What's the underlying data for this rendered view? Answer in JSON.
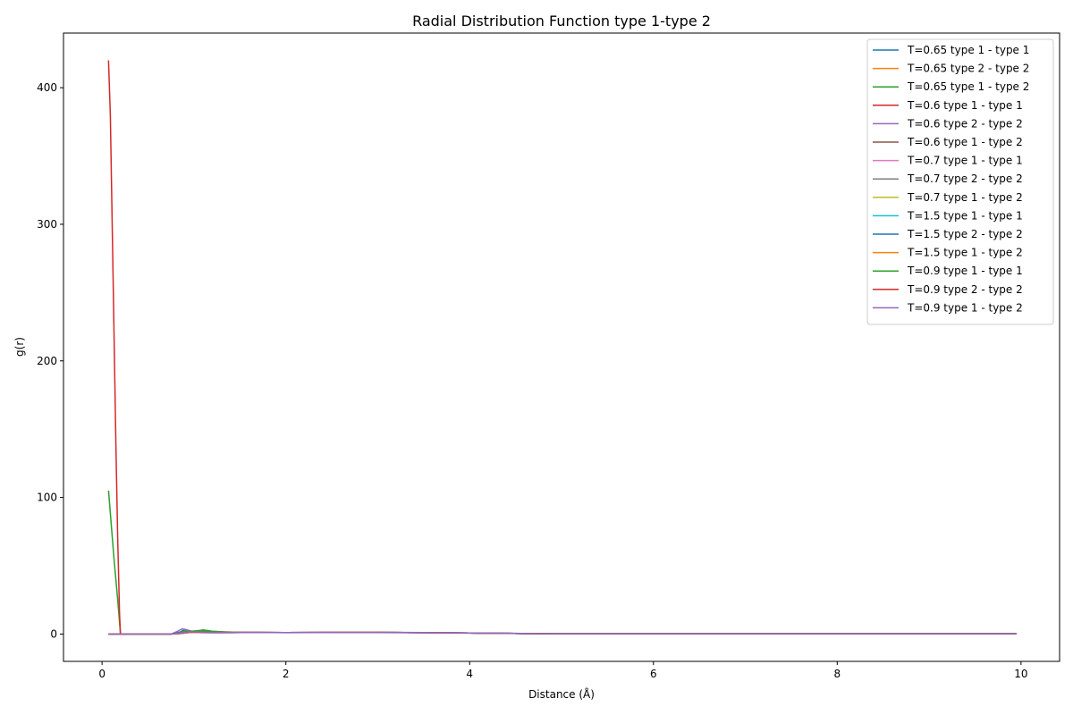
{
  "chart_data": {
    "type": "line",
    "title": "Radial Distribution Function type 1-type 2",
    "xlabel": "Distance (Å)",
    "ylabel": "g(r)",
    "xlim": [
      -0.42,
      10.42
    ],
    "ylim": [
      -20,
      440
    ],
    "xticks": [
      0,
      2,
      4,
      6,
      8,
      10
    ],
    "yticks": [
      0,
      100,
      200,
      300,
      400
    ],
    "grid": false,
    "legend_position": "top-right",
    "series": [
      {
        "name": "T=0.65 type 1 - type 1",
        "color": "#1f77b4",
        "x": [
          0.07,
          0.12,
          0.2,
          0.5,
          0.75,
          0.85,
          0.9,
          0.95,
          1.0,
          1.1,
          1.2,
          1.4,
          1.7,
          2.0,
          2.5,
          3.0,
          3.5,
          3.7,
          4.0,
          4.5,
          4.7,
          5.0,
          6.0,
          7.0,
          8.0,
          9.0,
          9.95
        ],
        "y": [
          0,
          0,
          0,
          0,
          0,
          1.5,
          3.5,
          2.5,
          1.5,
          3.0,
          2.0,
          1.2,
          1.3,
          1.0,
          1.2,
          1.3,
          1.1,
          0.8,
          0.8,
          0.5,
          0.2,
          0.2,
          0.2,
          0.2,
          0.2,
          0.2,
          0.2
        ]
      },
      {
        "name": "T=0.65 type 2 - type 2",
        "color": "#ff7f0e",
        "x": [
          0.07,
          0.2,
          0.5,
          0.75,
          0.85,
          0.95,
          1.05,
          1.2,
          1.5,
          2.0,
          2.5,
          3.0,
          3.6,
          4.0,
          4.6,
          5.0,
          6.0,
          7.0,
          8.0,
          9.0,
          9.95
        ],
        "y": [
          0,
          0,
          0,
          0,
          0.5,
          1.5,
          1.2,
          1.0,
          1.2,
          1.1,
          1.2,
          1.2,
          1.0,
          0.8,
          0.4,
          0.2,
          0.2,
          0.2,
          0.2,
          0.2,
          0.2
        ]
      },
      {
        "name": "T=0.65 type 1 - type 2",
        "color": "#2ca02c",
        "x": [
          0.07,
          0.1,
          0.13,
          0.17,
          0.2,
          0.5,
          0.75,
          0.85,
          0.9,
          1.0,
          1.1,
          1.2,
          1.5,
          2.0,
          2.5,
          3.0,
          3.5,
          3.7,
          4.0,
          4.6,
          5.0,
          6.0,
          7.0,
          8.0,
          9.0,
          9.95
        ],
        "y": [
          105,
          80,
          55,
          25,
          0,
          0,
          0,
          1,
          2.5,
          2.0,
          3.0,
          2.0,
          1.2,
          1.1,
          1.2,
          1.2,
          1.0,
          0.8,
          0.7,
          0.4,
          0.2,
          0.2,
          0.2,
          0.2,
          0.2,
          0.2
        ]
      },
      {
        "name": "T=0.6 type 1 - type 1",
        "color": "#d62728",
        "x": [
          0.07,
          0.09,
          0.11,
          0.13,
          0.15,
          0.17,
          0.19,
          0.2,
          0.5,
          0.75,
          0.85,
          0.95,
          1.05,
          1.2,
          1.5,
          2.0,
          2.5,
          3.0,
          3.6,
          4.0,
          4.6,
          5.0,
          6.0,
          7.0,
          8.0,
          9.0,
          9.95
        ],
        "y": [
          420,
          380,
          300,
          220,
          140,
          70,
          15,
          0,
          0,
          0,
          0.5,
          1.8,
          1.6,
          1.2,
          1.3,
          1.1,
          1.2,
          1.2,
          1.0,
          0.8,
          0.4,
          0.2,
          0.2,
          0.2,
          0.2,
          0.2,
          0.2
        ]
      },
      {
        "name": "T=0.6 type 2 - type 2",
        "color": "#9467bd",
        "x": [
          0.07,
          0.2,
          0.5,
          0.75,
          0.82,
          0.87,
          0.92,
          0.97,
          1.05,
          1.2,
          1.5,
          2.0,
          2.5,
          3.0,
          3.6,
          4.0,
          4.6,
          5.0,
          6.0,
          7.0,
          8.0,
          9.0,
          9.95
        ],
        "y": [
          0,
          0,
          0,
          0,
          2.0,
          3.8,
          3.0,
          2.0,
          1.5,
          1.1,
          1.2,
          1.1,
          1.2,
          1.2,
          1.0,
          0.8,
          0.4,
          0.2,
          0.2,
          0.2,
          0.2,
          0.2,
          0.2
        ]
      },
      {
        "name": "T=0.6 type 1 - type 2",
        "color": "#8c564b",
        "x": [
          0.07,
          0.2,
          0.5,
          0.75,
          0.85,
          0.95,
          1.05,
          1.2,
          1.5,
          2.0,
          2.5,
          3.0,
          3.6,
          4.0,
          4.6,
          5.0,
          6.0,
          7.0,
          8.0,
          9.0,
          9.95
        ],
        "y": [
          0,
          0,
          0,
          0,
          0.8,
          1.6,
          1.4,
          1.1,
          1.2,
          1.1,
          1.2,
          1.2,
          1.0,
          0.8,
          0.4,
          0.2,
          0.2,
          0.2,
          0.2,
          0.2,
          0.2
        ]
      },
      {
        "name": "T=0.7 type 1 - type 1",
        "color": "#e377c2",
        "x": [
          0.07,
          0.2,
          0.5,
          0.75,
          0.85,
          0.95,
          1.05,
          1.2,
          1.5,
          2.0,
          2.5,
          3.0,
          3.6,
          4.0,
          4.6,
          5.0,
          6.0,
          7.0,
          8.0,
          9.0,
          9.95
        ],
        "y": [
          0,
          0,
          0,
          0,
          0.6,
          1.4,
          1.3,
          1.1,
          1.2,
          1.1,
          1.2,
          1.2,
          1.0,
          0.8,
          0.4,
          0.2,
          0.2,
          0.2,
          0.2,
          0.2,
          0.2
        ]
      },
      {
        "name": "T=0.7 type 2 - type 2",
        "color": "#7f7f7f",
        "x": [
          0.07,
          0.2,
          0.5,
          0.75,
          0.85,
          0.95,
          1.05,
          1.2,
          1.5,
          2.0,
          2.5,
          3.0,
          3.6,
          4.0,
          4.6,
          5.0,
          6.0,
          7.0,
          8.0,
          9.0,
          9.95
        ],
        "y": [
          0,
          0,
          0,
          0,
          0.7,
          1.5,
          1.3,
          1.1,
          1.2,
          1.1,
          1.2,
          1.2,
          1.0,
          0.8,
          0.4,
          0.2,
          0.2,
          0.2,
          0.2,
          0.2,
          0.2
        ]
      },
      {
        "name": "T=0.7 type 1 - type 2",
        "color": "#bcbd22",
        "x": [
          0.07,
          0.2,
          0.5,
          0.75,
          0.85,
          0.95,
          1.05,
          1.2,
          1.5,
          2.0,
          2.5,
          3.0,
          3.6,
          4.0,
          4.6,
          5.0,
          6.0,
          7.0,
          8.0,
          9.0,
          9.95
        ],
        "y": [
          0,
          0,
          0,
          0,
          0.6,
          1.4,
          1.3,
          1.1,
          1.2,
          1.1,
          1.2,
          1.2,
          1.0,
          0.8,
          0.4,
          0.2,
          0.2,
          0.2,
          0.2,
          0.2,
          0.2
        ]
      },
      {
        "name": "T=1.5 type 1 - type 1",
        "color": "#17becf",
        "x": [
          0.07,
          0.2,
          0.5,
          0.75,
          0.85,
          0.95,
          1.05,
          1.2,
          1.5,
          2.0,
          2.5,
          3.0,
          3.6,
          4.0,
          4.6,
          5.0,
          6.0,
          7.0,
          8.0,
          9.0,
          9.95
        ],
        "y": [
          0,
          0,
          0,
          0,
          0.4,
          1.1,
          1.1,
          1.0,
          1.1,
          1.1,
          1.1,
          1.1,
          1.0,
          0.8,
          0.4,
          0.2,
          0.2,
          0.2,
          0.2,
          0.2,
          0.2
        ]
      },
      {
        "name": "T=1.5 type 2 - type 2",
        "color": "#1f77b4",
        "x": [
          0.07,
          0.2,
          0.5,
          0.75,
          0.85,
          0.95,
          1.05,
          1.2,
          1.5,
          2.0,
          2.5,
          3.0,
          3.6,
          4.0,
          4.6,
          5.0,
          6.0,
          7.0,
          8.0,
          9.0,
          9.95
        ],
        "y": [
          0,
          0,
          0,
          0,
          0.4,
          1.1,
          1.1,
          1.0,
          1.1,
          1.1,
          1.1,
          1.1,
          1.0,
          0.8,
          0.4,
          0.2,
          0.2,
          0.2,
          0.2,
          0.2,
          0.2
        ]
      },
      {
        "name": "T=1.5 type 1 - type 2",
        "color": "#ff7f0e",
        "x": [
          0.07,
          0.2,
          0.5,
          0.75,
          0.85,
          0.95,
          1.05,
          1.2,
          1.5,
          2.0,
          2.5,
          3.0,
          3.6,
          4.0,
          4.6,
          5.0,
          6.0,
          7.0,
          8.0,
          9.0,
          9.95
        ],
        "y": [
          0,
          0,
          0,
          0,
          0.4,
          1.1,
          1.1,
          1.0,
          1.1,
          1.1,
          1.1,
          1.1,
          1.0,
          0.8,
          0.4,
          0.2,
          0.2,
          0.2,
          0.2,
          0.2,
          0.2
        ]
      },
      {
        "name": "T=0.9 type 1 - type 1",
        "color": "#2ca02c",
        "x": [
          0.07,
          0.2,
          0.5,
          0.75,
          0.85,
          0.95,
          1.05,
          1.15,
          1.25,
          1.5,
          2.0,
          2.5,
          3.0,
          3.6,
          4.0,
          4.6,
          5.0,
          6.0,
          7.0,
          8.0,
          9.0,
          9.95
        ],
        "y": [
          0,
          0,
          0,
          0,
          0.8,
          2.0,
          2.5,
          2.2,
          1.2,
          1.2,
          1.1,
          1.2,
          1.2,
          1.0,
          0.8,
          0.4,
          0.2,
          0.2,
          0.2,
          0.2,
          0.2,
          0.2
        ]
      },
      {
        "name": "T=0.9 type 2 - type 2",
        "color": "#d62728",
        "x": [
          0.07,
          0.2,
          0.5,
          0.75,
          0.85,
          0.95,
          1.05,
          1.2,
          1.5,
          2.0,
          2.5,
          3.0,
          3.6,
          4.0,
          4.6,
          5.0,
          6.0,
          7.0,
          8.0,
          9.0,
          9.95
        ],
        "y": [
          0,
          0,
          0,
          0,
          0.6,
          1.5,
          1.3,
          1.1,
          1.2,
          1.1,
          1.2,
          1.2,
          1.0,
          0.8,
          0.4,
          0.2,
          0.2,
          0.2,
          0.2,
          0.2,
          0.2
        ]
      },
      {
        "name": "T=0.9 type 1 - type 2",
        "color": "#9467bd",
        "x": [
          0.07,
          0.2,
          0.5,
          0.75,
          0.85,
          0.95,
          1.05,
          1.2,
          1.5,
          2.0,
          2.5,
          3.0,
          3.6,
          4.0,
          4.6,
          5.0,
          6.0,
          7.0,
          8.0,
          9.0,
          9.95
        ],
        "y": [
          0,
          0,
          0,
          0,
          0.7,
          1.6,
          1.4,
          1.1,
          1.2,
          1.1,
          1.2,
          1.2,
          1.0,
          0.8,
          0.4,
          0.2,
          0.2,
          0.2,
          0.2,
          0.2,
          0.2
        ]
      }
    ]
  }
}
